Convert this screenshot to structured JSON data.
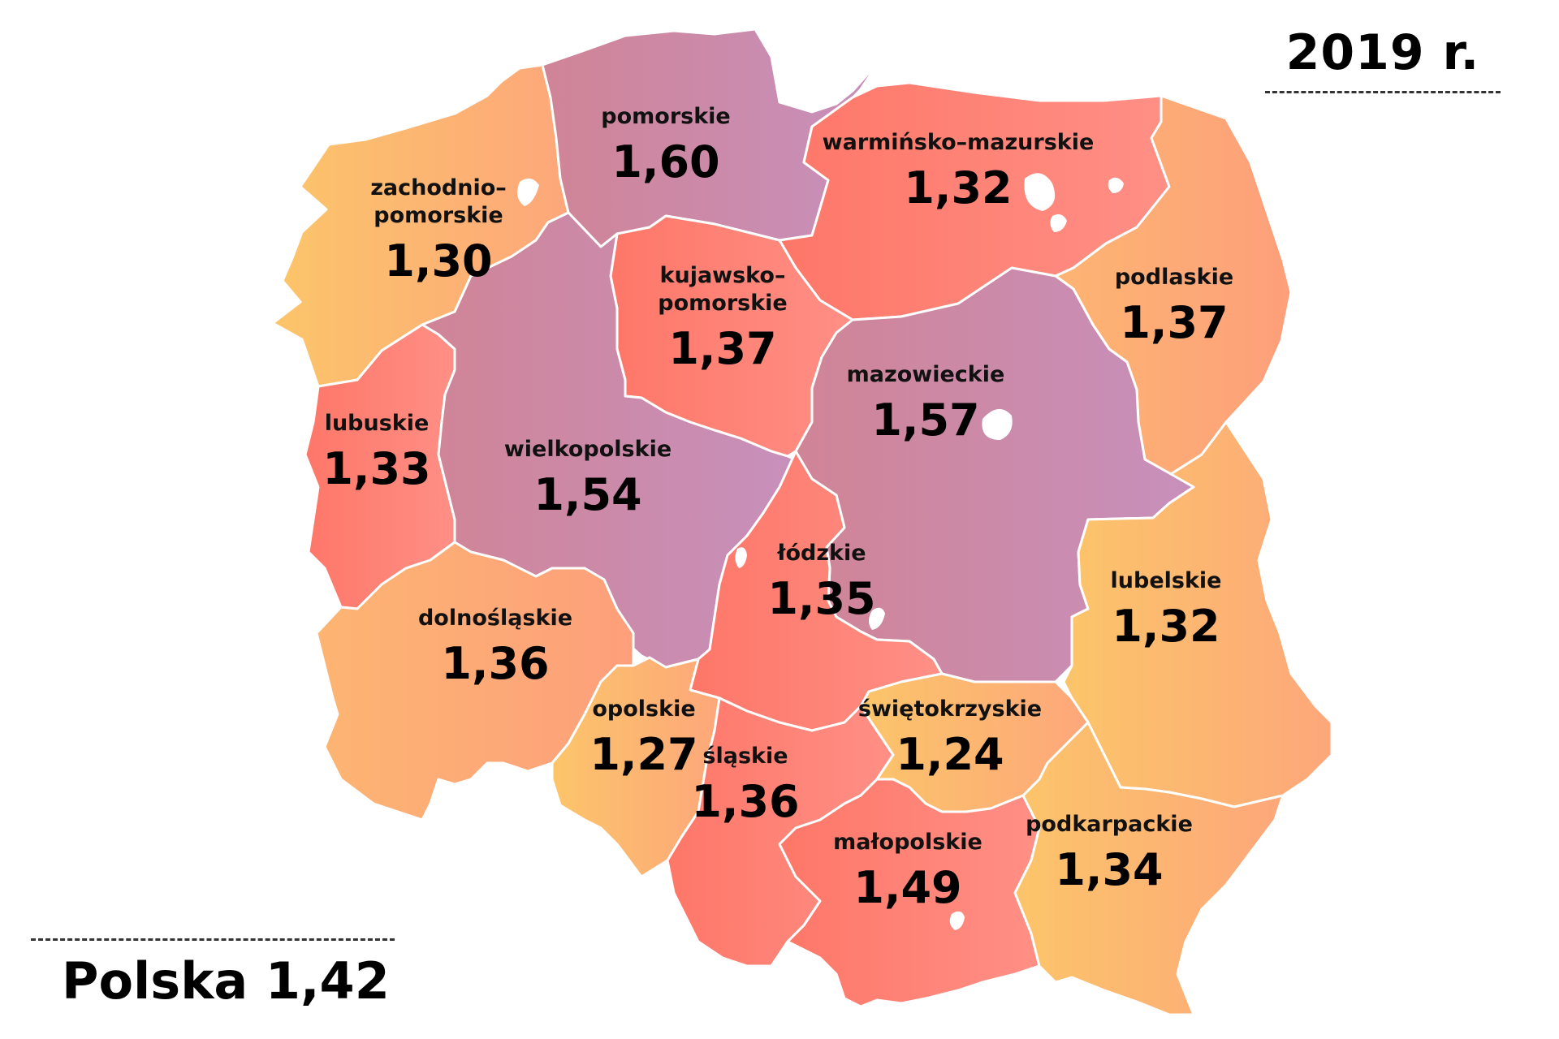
{
  "year_label": "2019 r.",
  "national": {
    "label": "Polska",
    "value": "1,42"
  },
  "colors": {
    "orange_light": "#fbc569",
    "orange": "#fda678",
    "salmon": "#fe7f74",
    "pink": "#ff8b82",
    "mauve": "#cd88a4"
  },
  "regions": [
    {
      "id": "zachodniopomorskie",
      "name_lines": [
        "zachodnio–",
        "pomorskie"
      ],
      "value": "1,30",
      "color": "orange_light"
    },
    {
      "id": "pomorskie",
      "name_lines": [
        "pomorskie"
      ],
      "value": "1,60",
      "color": "mauve"
    },
    {
      "id": "warminsko-mazurskie",
      "name_lines": [
        "warmińsko–mazurskie"
      ],
      "value": "1,32",
      "color": "salmon"
    },
    {
      "id": "podlaskie",
      "name_lines": [
        "podlaskie"
      ],
      "value": "1,37",
      "color": "orange"
    },
    {
      "id": "kujawsko-pomorskie",
      "name_lines": [
        "kujawsko–",
        "pomorskie"
      ],
      "value": "1,37",
      "color": "salmon"
    },
    {
      "id": "mazowieckie",
      "name_lines": [
        "mazowieckie"
      ],
      "value": "1,57",
      "color": "mauve"
    },
    {
      "id": "lubuskie",
      "name_lines": [
        "lubuskie"
      ],
      "value": "1,33",
      "color": "salmon"
    },
    {
      "id": "wielkopolskie",
      "name_lines": [
        "wielkopolskie"
      ],
      "value": "1,54",
      "color": "mauve"
    },
    {
      "id": "lodzkie",
      "name_lines": [
        "łódzkie"
      ],
      "value": "1,35",
      "color": "salmon"
    },
    {
      "id": "lubelskie",
      "name_lines": [
        "lubelskie"
      ],
      "value": "1,32",
      "color": "orange_light"
    },
    {
      "id": "dolnoslaskie",
      "name_lines": [
        "dolnośląskie"
      ],
      "value": "1,36",
      "color": "orange"
    },
    {
      "id": "opolskie",
      "name_lines": [
        "opolskie"
      ],
      "value": "1,27",
      "color": "orange_light"
    },
    {
      "id": "slaskie",
      "name_lines": [
        "śląskie"
      ],
      "value": "1,36",
      "color": "salmon"
    },
    {
      "id": "swietokrzyskie",
      "name_lines": [
        "świętokrzyskie"
      ],
      "value": "1,24",
      "color": "orange_light"
    },
    {
      "id": "malopolskie",
      "name_lines": [
        "małopolskie"
      ],
      "value": "1,49",
      "color": "salmon"
    },
    {
      "id": "podkarpackie",
      "name_lines": [
        "podkarpackie"
      ],
      "value": "1,34",
      "color": "orange_light"
    }
  ]
}
